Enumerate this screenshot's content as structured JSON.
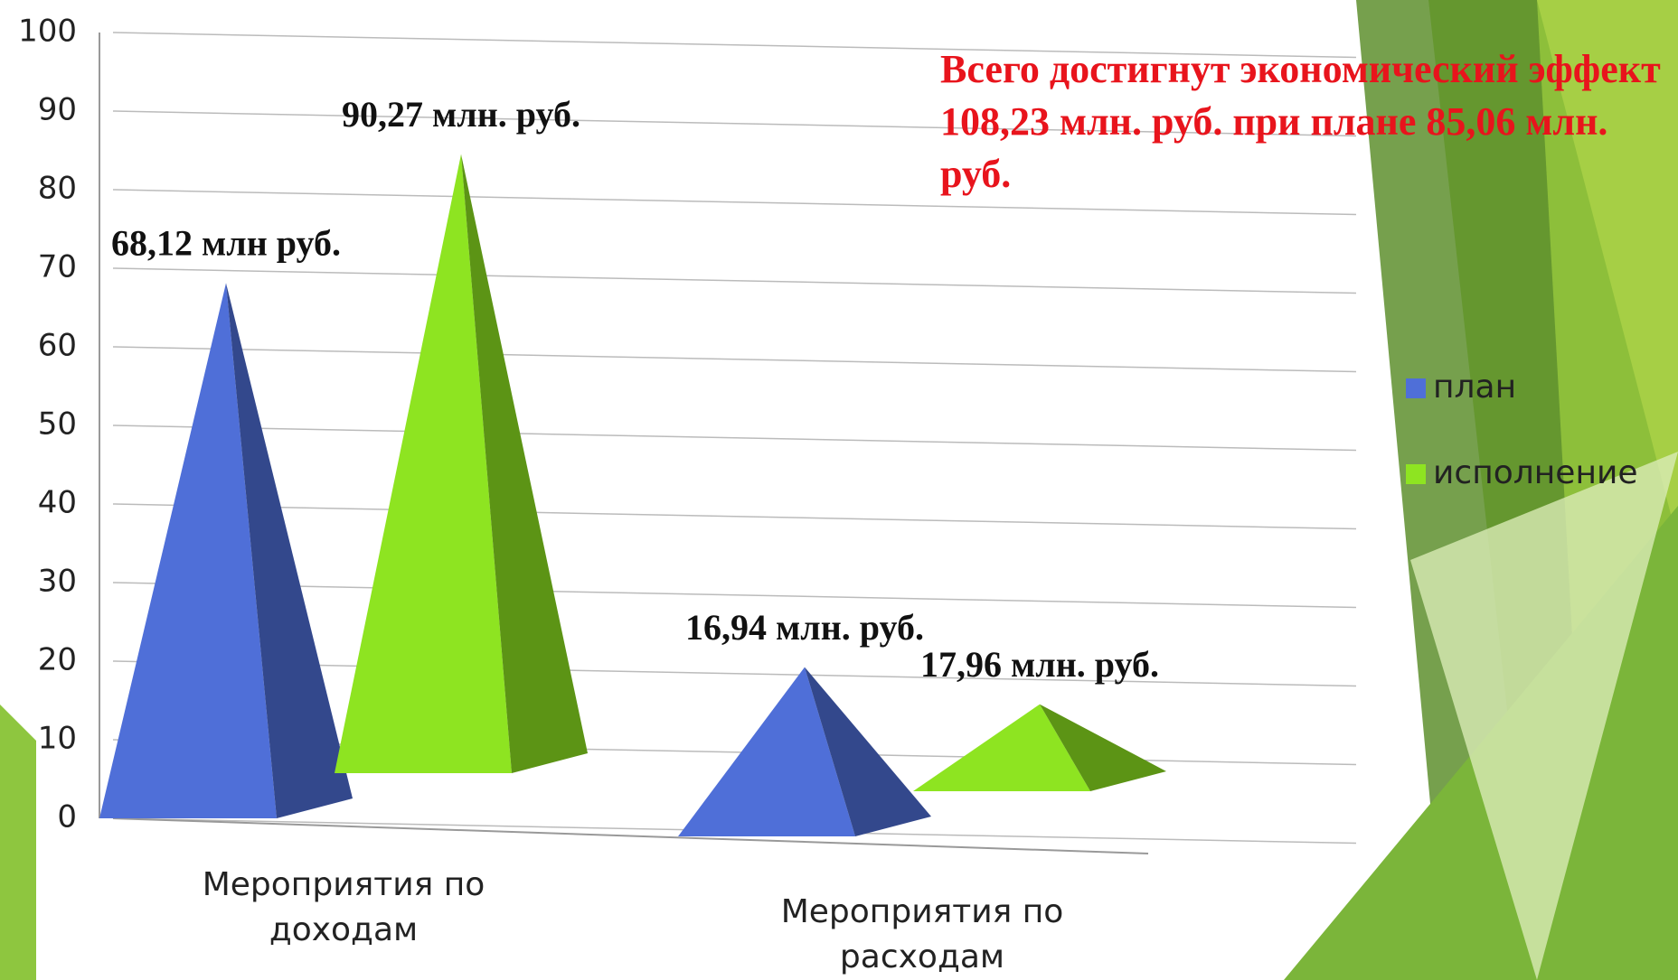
{
  "chart_data": {
    "type": "pyramid3d",
    "annotation": "Всего достигнут экономический эффект 108,23 млн. руб. при плане 85,06 млн. руб.",
    "categories": [
      "Мероприятия по доходам",
      "Мероприятия по расходам"
    ],
    "series": [
      {
        "name": "план",
        "color": "#4f6fd8",
        "values": [
          68.12,
          16.94
        ],
        "value_labels": [
          "68,12 млн руб.",
          "16,94 млн. руб."
        ]
      },
      {
        "name": "исполнение",
        "color": "#8ee421",
        "values": [
          90.27,
          17.96
        ],
        "value_labels": [
          "90,27 млн. руб.",
          "17,96 млн. руб."
        ]
      }
    ],
    "ylim": [
      0,
      100
    ],
    "yticks": [
      0,
      10,
      20,
      30,
      40,
      50,
      60,
      70,
      80,
      90,
      100
    ],
    "grid": true
  }
}
